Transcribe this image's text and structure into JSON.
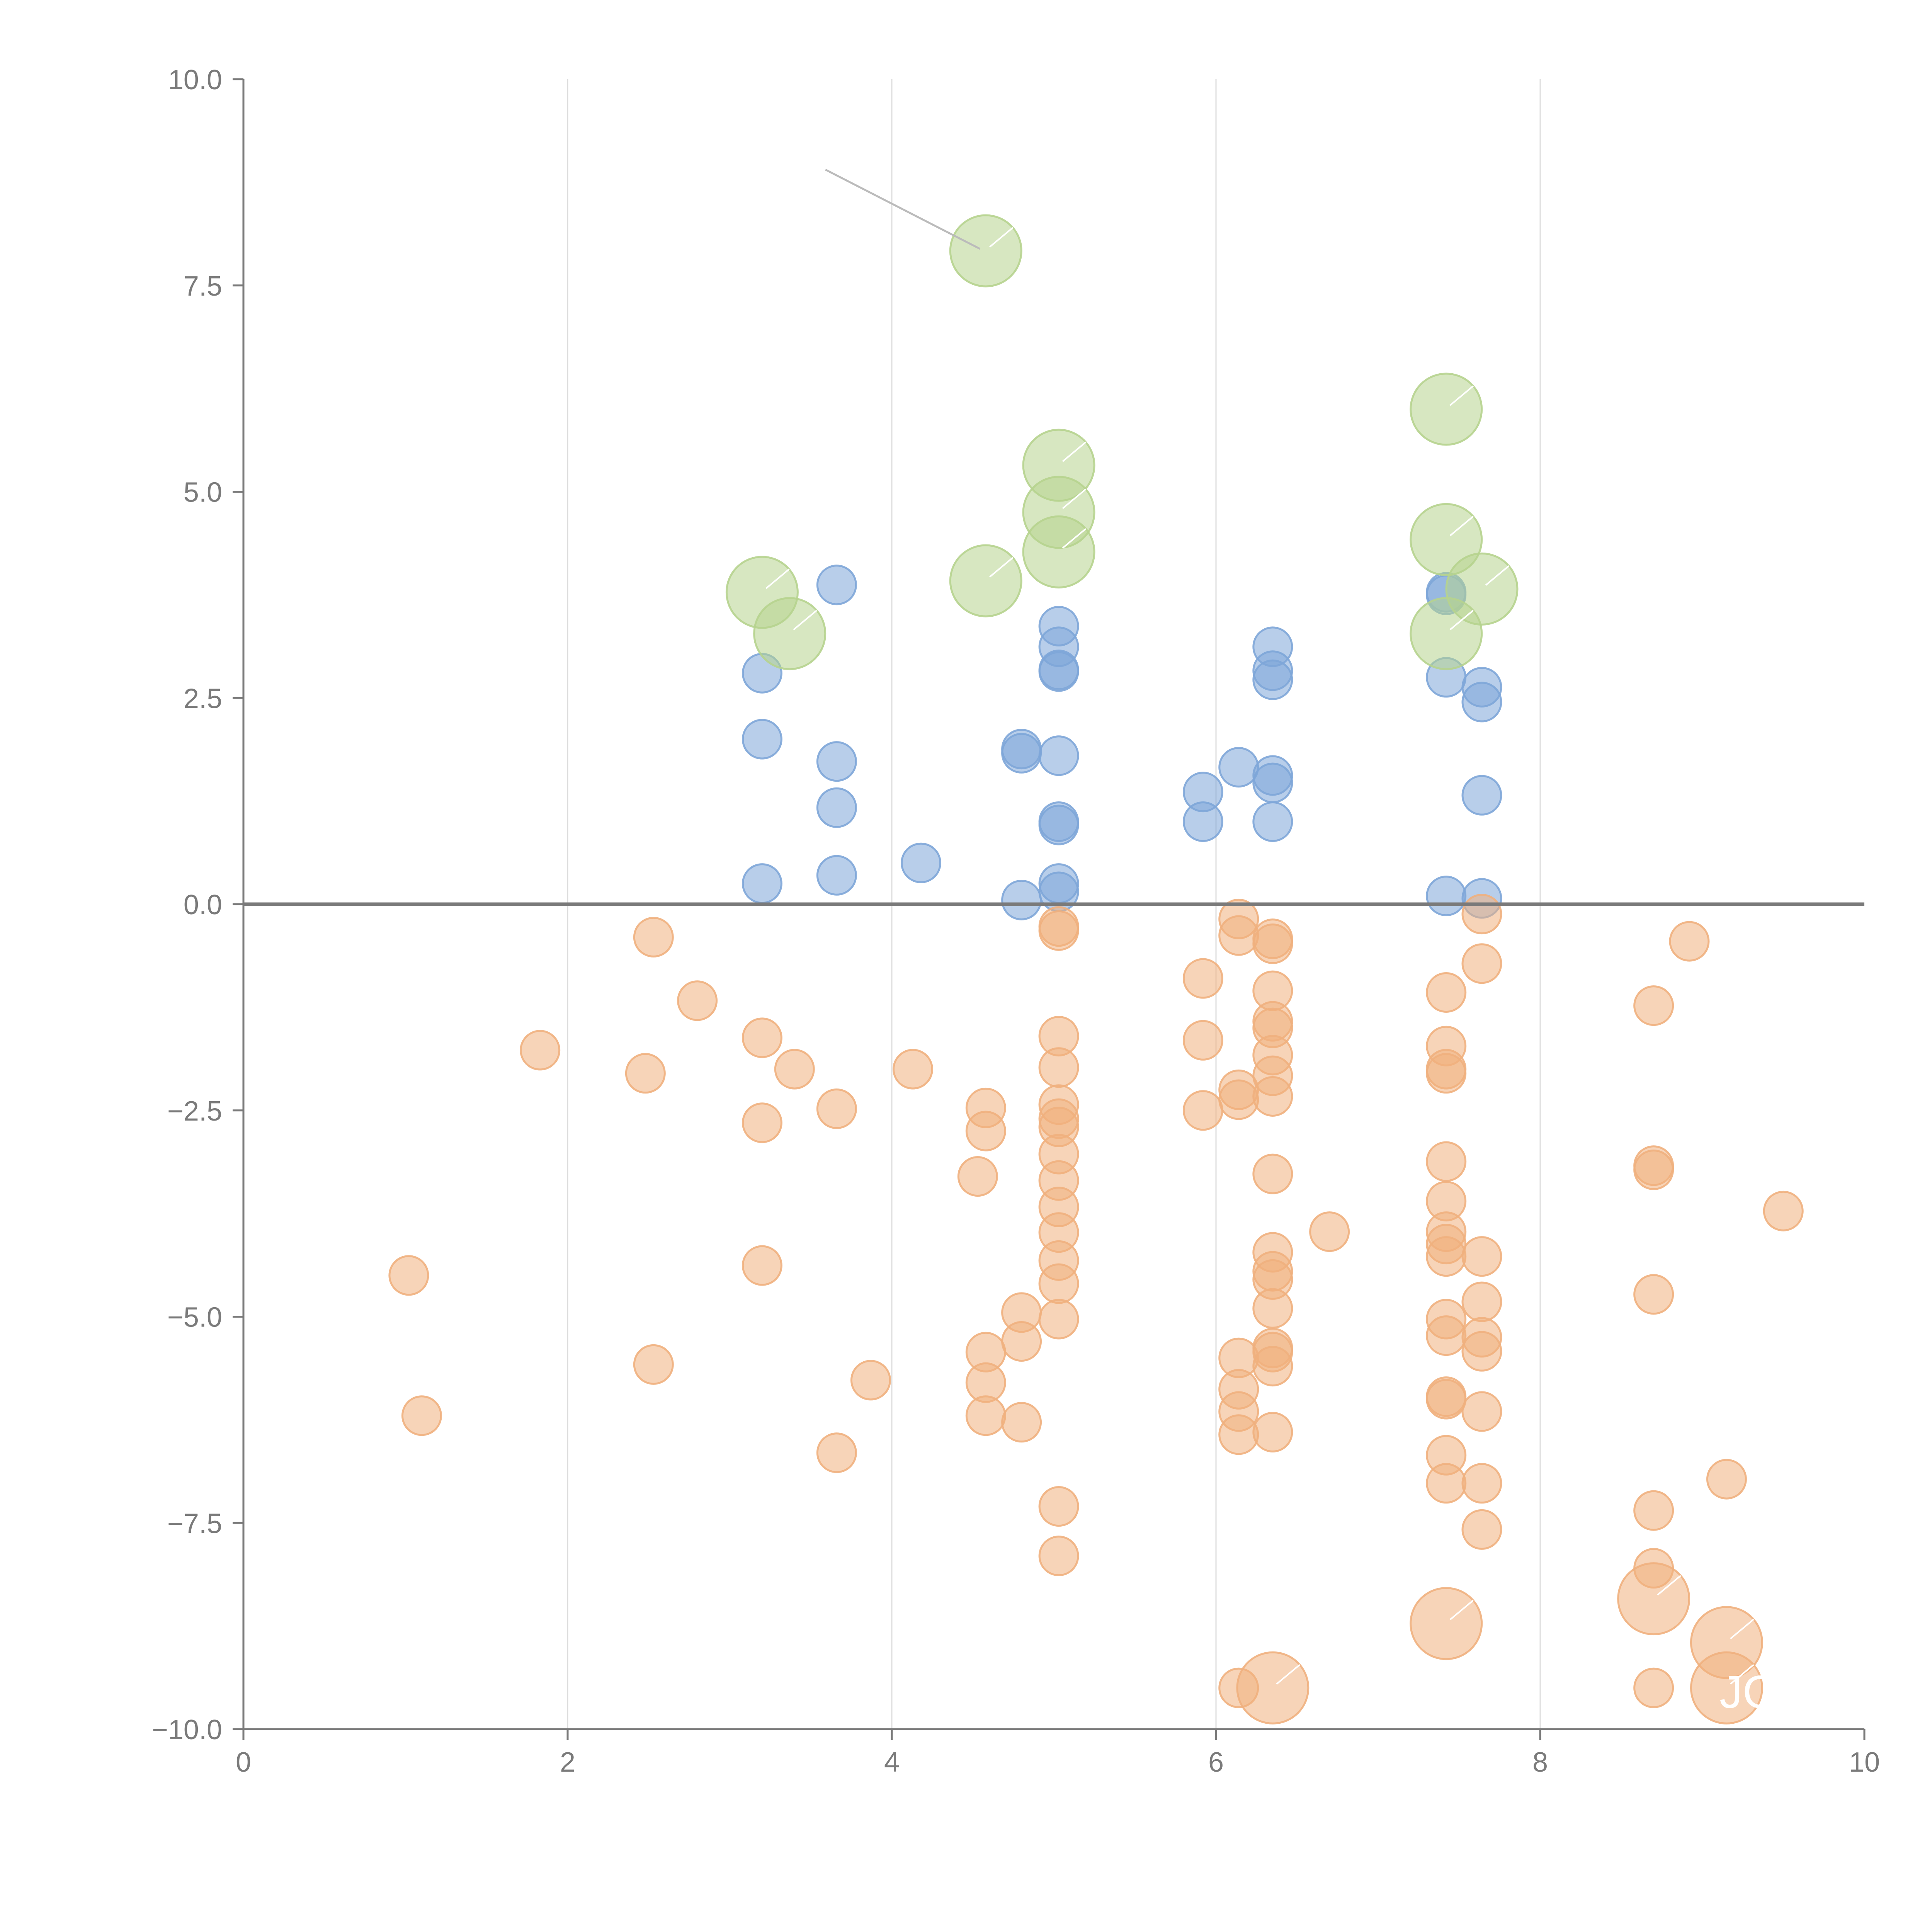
{
  "chart_data": {
    "type": "scatter",
    "title": "",
    "xlabel": "",
    "ylabel": "",
    "xlim": [
      0,
      10
    ],
    "ylim": [
      -10,
      10
    ],
    "x_ticks": [
      "0",
      "2",
      "4",
      "6",
      "8",
      "10"
    ],
    "y_ticks": [
      "10.0",
      "7.5",
      "5.0",
      "2.5",
      "0.0",
      "−2.5",
      "−5.0",
      "−7.5",
      "−10.0"
    ],
    "grid": "vertical",
    "baseline": 0,
    "colors": {
      "positive": "#7ea6d8",
      "negative": "#f0b07e",
      "highlight_positive": "#b6d38e",
      "highlight_negative": "#f0b07e",
      "axis": "#7a7a7a",
      "grid": "#dddddd",
      "leader": "#bbbbbb"
    },
    "annotations": [
      "JO"
    ],
    "series": [
      {
        "name": "positive",
        "points": [
          [
            3.2,
            0.25
          ],
          [
            3.2,
            2.0
          ],
          [
            3.2,
            2.8
          ],
          [
            3.66,
            0.35
          ],
          [
            3.66,
            1.17
          ],
          [
            3.66,
            1.73
          ],
          [
            3.66,
            3.87
          ],
          [
            4.18,
            0.5
          ],
          [
            4.8,
            0.05
          ],
          [
            4.8,
            1.83
          ],
          [
            4.8,
            1.88
          ],
          [
            5.03,
            0.15
          ],
          [
            5.03,
            0.25
          ],
          [
            5.03,
            0.96
          ],
          [
            5.03,
            1.0
          ],
          [
            5.03,
            1.8
          ],
          [
            5.03,
            2.82
          ],
          [
            5.03,
            2.84
          ],
          [
            5.03,
            3.12
          ],
          [
            5.03,
            3.37
          ],
          [
            5.92,
            1.0
          ],
          [
            5.92,
            1.36
          ],
          [
            6.14,
            1.66
          ],
          [
            6.35,
            1.0
          ],
          [
            6.35,
            1.47
          ],
          [
            6.35,
            1.56
          ],
          [
            6.35,
            2.72
          ],
          [
            6.35,
            2.83
          ],
          [
            6.35,
            3.12
          ],
          [
            7.42,
            0.1
          ],
          [
            7.42,
            2.75
          ],
          [
            7.42,
            3.75
          ],
          [
            7.42,
            3.78
          ],
          [
            7.64,
            0.07
          ],
          [
            7.64,
            1.32
          ],
          [
            7.64,
            2.45
          ],
          [
            7.64,
            2.63
          ]
        ]
      },
      {
        "name": "negative",
        "points": [
          [
            1.02,
            -4.5
          ],
          [
            1.1,
            -6.2
          ],
          [
            1.83,
            -1.77
          ],
          [
            2.48,
            -2.05
          ],
          [
            2.53,
            -0.4
          ],
          [
            2.53,
            -5.58
          ],
          [
            2.8,
            -1.17
          ],
          [
            3.2,
            -1.62
          ],
          [
            3.2,
            -2.65
          ],
          [
            3.2,
            -4.38
          ],
          [
            3.4,
            -2.0
          ],
          [
            3.66,
            -2.48
          ],
          [
            3.66,
            -6.65
          ],
          [
            3.87,
            -5.77
          ],
          [
            4.13,
            -2.0
          ],
          [
            4.53,
            -3.3
          ],
          [
            4.58,
            -2.47
          ],
          [
            4.58,
            -2.75
          ],
          [
            4.58,
            -5.43
          ],
          [
            4.58,
            -5.8
          ],
          [
            4.58,
            -6.2
          ],
          [
            4.8,
            -4.95
          ],
          [
            4.8,
            -5.3
          ],
          [
            4.8,
            -6.28
          ],
          [
            5.03,
            -0.27
          ],
          [
            5.03,
            -0.32
          ],
          [
            5.03,
            -1.6
          ],
          [
            5.03,
            -1.98
          ],
          [
            5.03,
            -2.43
          ],
          [
            5.03,
            -2.6
          ],
          [
            5.03,
            -2.7
          ],
          [
            5.03,
            -3.03
          ],
          [
            5.03,
            -3.35
          ],
          [
            5.03,
            -3.67
          ],
          [
            5.03,
            -3.98
          ],
          [
            5.03,
            -4.32
          ],
          [
            5.03,
            -4.6
          ],
          [
            5.03,
            -5.03
          ],
          [
            5.03,
            -7.3
          ],
          [
            5.03,
            -7.9
          ],
          [
            5.92,
            -0.9
          ],
          [
            5.92,
            -1.65
          ],
          [
            5.92,
            -2.5
          ],
          [
            6.14,
            -0.18
          ],
          [
            6.14,
            -0.38
          ],
          [
            6.14,
            -2.25
          ],
          [
            6.14,
            -2.37
          ],
          [
            6.14,
            -5.5
          ],
          [
            6.14,
            -5.88
          ],
          [
            6.14,
            -6.15
          ],
          [
            6.14,
            -6.43
          ],
          [
            6.14,
            -9.5
          ],
          [
            6.35,
            -0.42
          ],
          [
            6.35,
            -0.48
          ],
          [
            6.35,
            -1.05
          ],
          [
            6.35,
            -1.42
          ],
          [
            6.35,
            -1.5
          ],
          [
            6.35,
            -1.83
          ],
          [
            6.35,
            -2.08
          ],
          [
            6.35,
            -2.33
          ],
          [
            6.35,
            -3.27
          ],
          [
            6.35,
            -4.22
          ],
          [
            6.35,
            -4.45
          ],
          [
            6.35,
            -4.55
          ],
          [
            6.35,
            -4.9
          ],
          [
            6.35,
            -5.38
          ],
          [
            6.35,
            -5.43
          ],
          [
            6.35,
            -5.6
          ],
          [
            6.35,
            -6.4
          ],
          [
            6.7,
            -3.97
          ],
          [
            7.42,
            -1.07
          ],
          [
            7.42,
            -1.72
          ],
          [
            7.42,
            -2.0
          ],
          [
            7.42,
            -2.05
          ],
          [
            7.42,
            -3.12
          ],
          [
            7.42,
            -3.6
          ],
          [
            7.42,
            -3.97
          ],
          [
            7.42,
            -4.12
          ],
          [
            7.42,
            -4.27
          ],
          [
            7.42,
            -5.03
          ],
          [
            7.42,
            -5.23
          ],
          [
            7.42,
            -5.97
          ],
          [
            7.42,
            -6.0
          ],
          [
            7.42,
            -6.68
          ],
          [
            7.42,
            -7.02
          ],
          [
            7.64,
            -0.12
          ],
          [
            7.64,
            -0.72
          ],
          [
            7.64,
            -4.27
          ],
          [
            7.64,
            -4.82
          ],
          [
            7.64,
            -5.25
          ],
          [
            7.64,
            -5.42
          ],
          [
            7.64,
            -6.15
          ],
          [
            7.64,
            -7.02
          ],
          [
            7.64,
            -7.58
          ],
          [
            8.7,
            -1.23
          ],
          [
            8.7,
            -3.17
          ],
          [
            8.7,
            -3.22
          ],
          [
            8.7,
            -4.73
          ],
          [
            8.7,
            -7.35
          ],
          [
            8.7,
            -8.05
          ],
          [
            8.7,
            -9.5
          ],
          [
            8.92,
            -0.45
          ],
          [
            9.15,
            -6.97
          ],
          [
            9.5,
            -3.72
          ]
        ]
      },
      {
        "name": "highlighted",
        "points": [
          [
            4.58,
            7.92,
            "positive"
          ],
          [
            7.42,
            6.0,
            "positive"
          ],
          [
            5.03,
            5.32,
            "positive"
          ],
          [
            5.03,
            4.75,
            "positive"
          ],
          [
            5.03,
            4.27,
            "positive"
          ],
          [
            7.42,
            4.42,
            "positive"
          ],
          [
            4.58,
            3.92,
            "positive"
          ],
          [
            3.2,
            3.78,
            "positive"
          ],
          [
            7.64,
            3.82,
            "positive"
          ],
          [
            3.37,
            3.28,
            "positive"
          ],
          [
            7.42,
            3.28,
            "positive"
          ],
          [
            7.42,
            -8.72,
            "negative"
          ],
          [
            8.7,
            -8.42,
            "negative"
          ],
          [
            9.15,
            -8.95,
            "negative"
          ],
          [
            9.15,
            -9.5,
            "negative"
          ],
          [
            6.35,
            -9.5,
            "negative"
          ]
        ]
      }
    ]
  }
}
